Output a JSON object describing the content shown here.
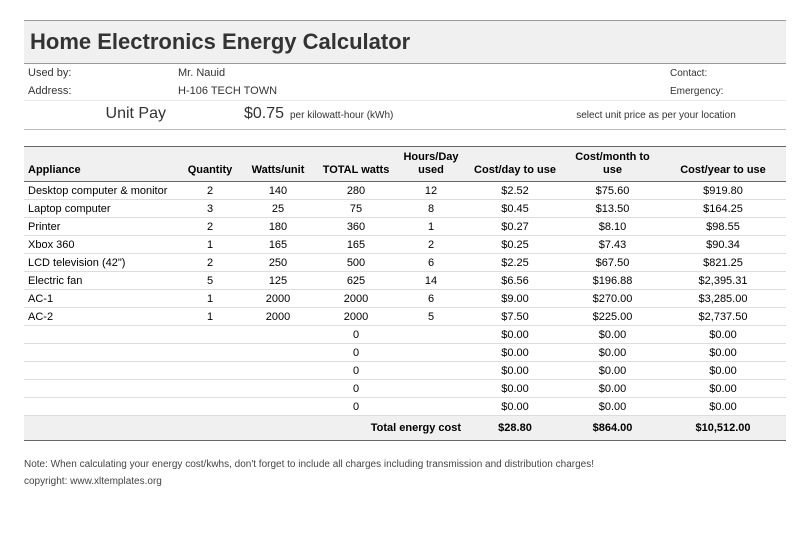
{
  "title": "Home Electronics Energy Calculator",
  "info": {
    "used_by_label": "Used by:",
    "used_by_value": "Mr. Nauid",
    "address_label": "Address:",
    "address_value": "H-106 TECH TOWN",
    "contact_label": "Contact:",
    "emergency_label": "Emergency:"
  },
  "unit": {
    "label": "Unit Pay",
    "value": "$0.75",
    "unit_text": "per kilowatt-hour (kWh)",
    "note": "select unit price as per your location"
  },
  "columns": {
    "appliance": "Appliance",
    "quantity": "Quantity",
    "watts_unit": "Watts/unit",
    "total_watts": "TOTAL  watts",
    "hours_day": "Hours/Day used",
    "cost_day": "Cost/day to use",
    "cost_month": "Cost/month to use",
    "cost_year": "Cost/year to use"
  },
  "rows": [
    {
      "app": "Desktop computer & monitor",
      "qty": "2",
      "wu": "140",
      "tw": "280",
      "hd": "12",
      "cd": "$2.52",
      "cm": "$75.60",
      "cy": "$919.80"
    },
    {
      "app": "Laptop computer",
      "qty": "3",
      "wu": "25",
      "tw": "75",
      "hd": "8",
      "cd": "$0.45",
      "cm": "$13.50",
      "cy": "$164.25"
    },
    {
      "app": "Printer",
      "qty": "2",
      "wu": "180",
      "tw": "360",
      "hd": "1",
      "cd": "$0.27",
      "cm": "$8.10",
      "cy": "$98.55"
    },
    {
      "app": "Xbox 360",
      "qty": "1",
      "wu": "165",
      "tw": "165",
      "hd": "2",
      "cd": "$0.25",
      "cm": "$7.43",
      "cy": "$90.34"
    },
    {
      "app": "LCD television (42\")",
      "qty": "2",
      "wu": "250",
      "tw": "500",
      "hd": "6",
      "cd": "$2.25",
      "cm": "$67.50",
      "cy": "$821.25"
    },
    {
      "app": "Electric fan",
      "qty": "5",
      "wu": "125",
      "tw": "625",
      "hd": "14",
      "cd": "$6.56",
      "cm": "$196.88",
      "cy": "$2,395.31"
    },
    {
      "app": "AC-1",
      "qty": "1",
      "wu": "2000",
      "tw": "2000",
      "hd": "6",
      "cd": "$9.00",
      "cm": "$270.00",
      "cy": "$3,285.00"
    },
    {
      "app": "AC-2",
      "qty": "1",
      "wu": "2000",
      "tw": "2000",
      "hd": "5",
      "cd": "$7.50",
      "cm": "$225.00",
      "cy": "$2,737.50"
    },
    {
      "app": "",
      "qty": "",
      "wu": "",
      "tw": "0",
      "hd": "",
      "cd": "$0.00",
      "cm": "$0.00",
      "cy": "$0.00"
    },
    {
      "app": "",
      "qty": "",
      "wu": "",
      "tw": "0",
      "hd": "",
      "cd": "$0.00",
      "cm": "$0.00",
      "cy": "$0.00"
    },
    {
      "app": "",
      "qty": "",
      "wu": "",
      "tw": "0",
      "hd": "",
      "cd": "$0.00",
      "cm": "$0.00",
      "cy": "$0.00"
    },
    {
      "app": "",
      "qty": "",
      "wu": "",
      "tw": "0",
      "hd": "",
      "cd": "$0.00",
      "cm": "$0.00",
      "cy": "$0.00"
    },
    {
      "app": "",
      "qty": "",
      "wu": "",
      "tw": "0",
      "hd": "",
      "cd": "$0.00",
      "cm": "$0.00",
      "cy": "$0.00"
    }
  ],
  "totals": {
    "label": "Total energy cost",
    "cd": "$28.80",
    "cm": "$864.00",
    "cy": "$10,512.00"
  },
  "footer": {
    "note": "Note: When calculating your energy cost/kwhs, don't forget to include all charges including transmission and distribution charges!",
    "copyright": "copyright: www.xltemplates.org"
  },
  "style": {
    "header_bg": "#f0f0f0",
    "border_color": "#666666",
    "row_border": "#dddddd",
    "text_color": "#333333"
  }
}
